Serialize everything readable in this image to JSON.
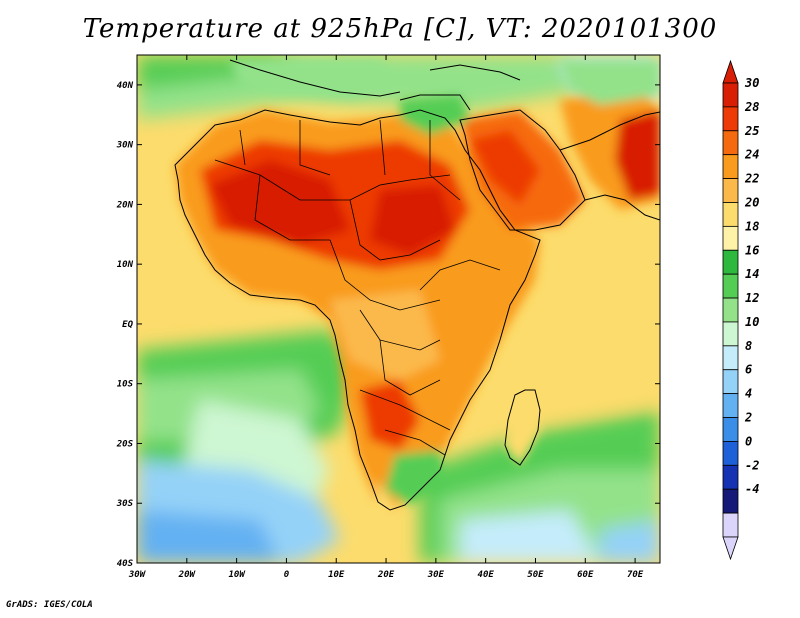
{
  "title": "Temperature at 925hPa [C], VT: 2020101300",
  "footer": "GrADS: IGES/COLA",
  "map": {
    "lon_range": [
      -30,
      75
    ],
    "lat_range": [
      -40,
      45
    ],
    "lon_ticks": [
      {
        "value": -30,
        "label": "30W"
      },
      {
        "value": -20,
        "label": "20W"
      },
      {
        "value": -10,
        "label": "10W"
      },
      {
        "value": 0,
        "label": "0"
      },
      {
        "value": 10,
        "label": "10E"
      },
      {
        "value": 20,
        "label": "20E"
      },
      {
        "value": 30,
        "label": "30E"
      },
      {
        "value": 40,
        "label": "40E"
      },
      {
        "value": 50,
        "label": "50E"
      },
      {
        "value": 60,
        "label": "60E"
      },
      {
        "value": 70,
        "label": "70E"
      }
    ],
    "lat_ticks": [
      {
        "value": 40,
        "label": "40N"
      },
      {
        "value": 30,
        "label": "30N"
      },
      {
        "value": 20,
        "label": "20N"
      },
      {
        "value": 10,
        "label": "10N"
      },
      {
        "value": 0,
        "label": "EQ"
      },
      {
        "value": -10,
        "label": "10S"
      },
      {
        "value": -20,
        "label": "20S"
      },
      {
        "value": -30,
        "label": "30S"
      },
      {
        "value": -40,
        "label": "40S"
      }
    ]
  },
  "colorbar": {
    "labels": [
      "30",
      "28",
      "25",
      "24",
      "22",
      "20",
      "18",
      "16",
      "14",
      "12",
      "10",
      "8",
      "6",
      "4",
      "2",
      "0",
      "-2",
      "-4"
    ],
    "colors": [
      "#d81e05",
      "#ed3a06",
      "#f66a0f",
      "#f99b1c",
      "#fbb94b",
      "#fcdc6c",
      "#fdf2a8",
      "#2fb83e",
      "#55cd54",
      "#93e28a",
      "#cdf6d2",
      "#c5ecfb",
      "#94d2f8",
      "#64b1f2",
      "#3a8ee8",
      "#1e60d8",
      "#1432b1",
      "#151a78",
      "#dcd5fb"
    ],
    "top_color": "#d81e05",
    "bottom_color": "#dcd5fb"
  }
}
